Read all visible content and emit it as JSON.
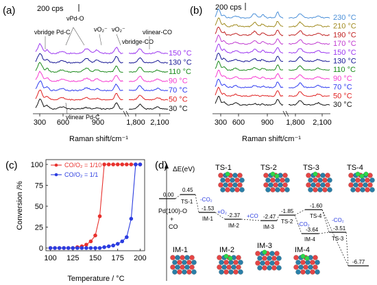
{
  "panels": [
    {
      "label": "(a)",
      "scale_bar": "200 cps",
      "xlabel": "Raman shift/cm⁻¹",
      "x_ticks": [
        "300",
        "600",
        "900",
        "1,800",
        "2,100"
      ],
      "temperatures": [
        "150 °C",
        "130 °C",
        "110 °C",
        "90 °C",
        "70 °C",
        "50 °C",
        "30 °C"
      ],
      "colors": [
        "#9b36f0",
        "#151594",
        "#1b8a1b",
        "#f53ad1",
        "#2f3cf0",
        "#e02020",
        "#111111"
      ],
      "peak_labels": [
        "νbridge Pd-C",
        "νPd-O",
        "νO₂⁻",
        "νO₂⁻",
        "νbridge-CO",
        "νlinear-CO",
        "νlinear Pd-C"
      ]
    },
    {
      "label": "(b)",
      "scale_bar": "200 cps",
      "xlabel": "Raman shift/cm⁻¹",
      "x_ticks": [
        "300",
        "600",
        "900",
        "1,800",
        "2,100"
      ],
      "temperatures": [
        "230 °C",
        "210 °C",
        "190 °C",
        "170 °C",
        "150 °C",
        "130 °C",
        "110 °C",
        "90 °C",
        "70 °C",
        "50 °C",
        "30 °C"
      ],
      "colors": [
        "#4a8fd8",
        "#a08a1e",
        "#c02020",
        "#c03ad1",
        "#9b36f0",
        "#151594",
        "#1b8a1b",
        "#f53ad1",
        "#2f3cf0",
        "#e02020",
        "#111111"
      ]
    }
  ],
  "chart_data": {
    "type": "line",
    "panel_label": "(c)",
    "xlabel": "Temperature / °C",
    "ylabel": "Conversion /%",
    "xlim": [
      95,
      205
    ],
    "ylim": [
      0,
      100
    ],
    "x_ticks": [
      100,
      125,
      150,
      175,
      200
    ],
    "y_ticks": [
      0,
      25,
      50,
      75,
      100
    ],
    "legend_position": "top-left",
    "series": [
      {
        "name": "CO/O₂ = 1/10",
        "color": "#e8302c",
        "x": [
          100,
          105,
          110,
          115,
          120,
          125,
          130,
          135,
          140,
          145,
          150,
          155,
          160,
          165,
          170,
          175,
          180,
          185,
          190,
          195,
          200
        ],
        "y": [
          0,
          0,
          0,
          0,
          0,
          0,
          1,
          2,
          4,
          8,
          15,
          38,
          100,
          100,
          100,
          100,
          100,
          100,
          100,
          100,
          100
        ]
      },
      {
        "name": "CO/O₂ = 1/1",
        "color": "#2b3de0",
        "x": [
          100,
          105,
          110,
          115,
          120,
          125,
          130,
          135,
          140,
          145,
          150,
          155,
          160,
          165,
          170,
          175,
          180,
          185,
          190,
          195,
          200
        ],
        "y": [
          0,
          0,
          0,
          0,
          0,
          0,
          0,
          0,
          0,
          0,
          0,
          0,
          1,
          2,
          3,
          5,
          8,
          13,
          35,
          100,
          100
        ]
      }
    ]
  },
  "panel_d": {
    "label": "(d)",
    "ylabel": "ΔE(eV)",
    "start_label": "Pd(100)-O",
    "plus": "+",
    "co": "CO",
    "ts_labels": [
      "TS-1",
      "TS-2",
      "TS-3",
      "TS-4"
    ],
    "im_labels": [
      "IM-1",
      "IM-2",
      "IM-3",
      "IM-4"
    ],
    "energies": {
      "start": "0.00",
      "ts1": "0.45",
      "im1": "-1.53",
      "im2": "-2.37",
      "im3": "-2.47",
      "ts2": "-1.85",
      "im4": "-3.64",
      "ts4": "-1.60",
      "ts3": "-3.51",
      "final": "-6.77"
    },
    "steps": [
      "-CO₂",
      "+O₂",
      "+CO",
      "-CO₂",
      "-CO₂"
    ],
    "level_labels": [
      "TS-1",
      "IM-1",
      "IM-2",
      "IM-3",
      "TS-2",
      "TS-4",
      "IM-4",
      "TS-3"
    ]
  }
}
